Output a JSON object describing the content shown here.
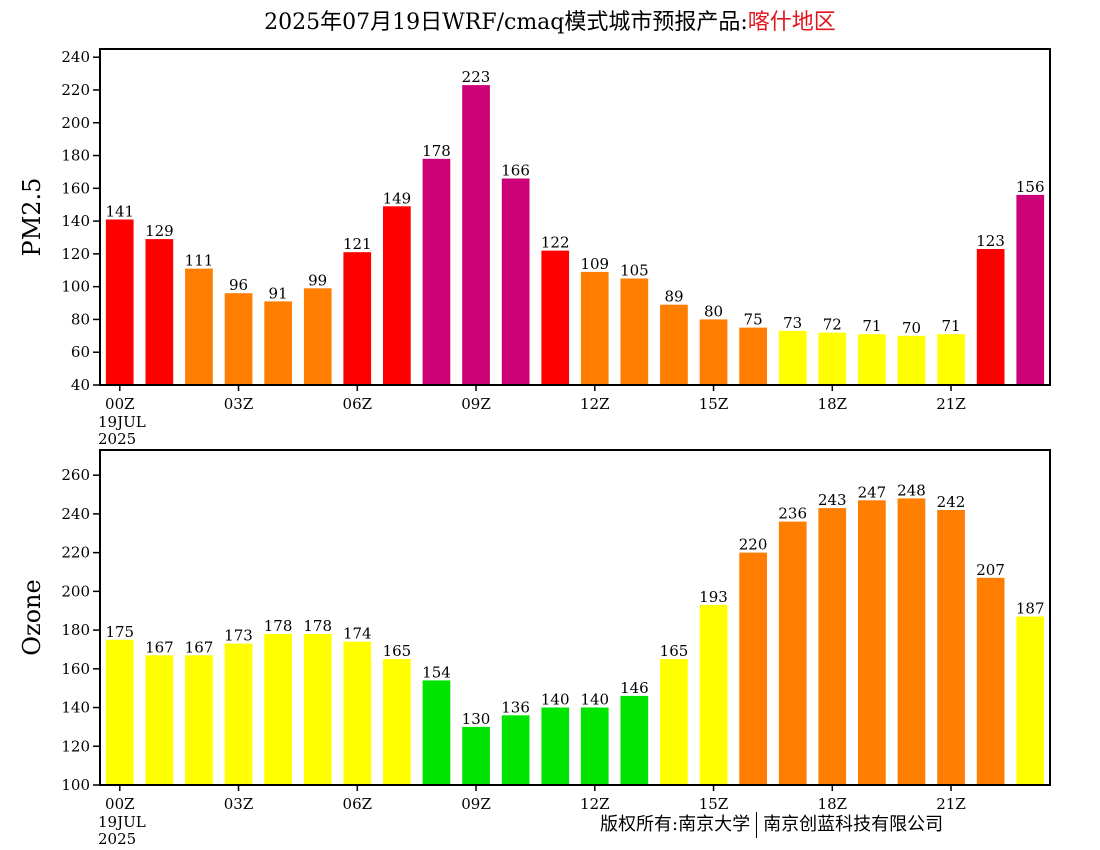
{
  "title": {
    "prefix": "2025年07月19日WRF/cmaq模式城市预报产品:",
    "region": "喀什地区"
  },
  "copyright": {
    "left": "版权所有:南京大学",
    "right": "南京创蓝科技有限公司"
  },
  "colors": {
    "green": "#00e400",
    "yellow": "#ffff00",
    "orange": "#ff7e00",
    "red": "#ff0000",
    "purple": "#cc0077"
  },
  "chart_data": [
    {
      "type": "bar",
      "ylabel": "PM2.5",
      "ylim": [
        40,
        245
      ],
      "yticks": [
        40,
        60,
        80,
        100,
        120,
        140,
        160,
        180,
        200,
        220,
        240
      ],
      "xtick_labels": [
        "00Z",
        "03Z",
        "06Z",
        "09Z",
        "12Z",
        "15Z",
        "18Z",
        "21Z"
      ],
      "xtick_hours": [
        0,
        3,
        6,
        9,
        12,
        15,
        18,
        21
      ],
      "date_label": [
        "19JUL",
        "2025"
      ],
      "hours": [
        0,
        1,
        2,
        3,
        4,
        5,
        6,
        7,
        8,
        9,
        10,
        11,
        12,
        13,
        14,
        15,
        16,
        17,
        18,
        19,
        20,
        21,
        22,
        23
      ],
      "values": [
        141,
        129,
        111,
        96,
        91,
        99,
        121,
        149,
        178,
        223,
        166,
        122,
        109,
        105,
        89,
        80,
        75,
        73,
        72,
        71,
        70,
        71,
        123,
        156
      ],
      "bar_colors": [
        "red",
        "red",
        "orange",
        "orange",
        "orange",
        "orange",
        "red",
        "red",
        "purple",
        "purple",
        "purple",
        "red",
        "orange",
        "orange",
        "orange",
        "orange",
        "orange",
        "yellow",
        "yellow",
        "yellow",
        "yellow",
        "yellow",
        "red",
        "purple"
      ]
    },
    {
      "type": "bar",
      "ylabel": "Ozone",
      "ylim": [
        100,
        273
      ],
      "yticks": [
        100,
        120,
        140,
        160,
        180,
        200,
        220,
        240,
        260
      ],
      "xtick_labels": [
        "00Z",
        "03Z",
        "06Z",
        "09Z",
        "12Z",
        "15Z",
        "18Z",
        "21Z"
      ],
      "xtick_hours": [
        0,
        3,
        6,
        9,
        12,
        15,
        18,
        21
      ],
      "date_label": [
        "19JUL",
        "2025"
      ],
      "hours": [
        0,
        1,
        2,
        3,
        4,
        5,
        6,
        7,
        8,
        9,
        10,
        11,
        12,
        13,
        14,
        15,
        16,
        17,
        18,
        19,
        20,
        21,
        22,
        23
      ],
      "values": [
        175,
        167,
        167,
        173,
        178,
        178,
        174,
        165,
        154,
        130,
        136,
        140,
        140,
        146,
        165,
        193,
        220,
        236,
        243,
        247,
        248,
        242,
        207,
        187
      ],
      "bar_colors": [
        "yellow",
        "yellow",
        "yellow",
        "yellow",
        "yellow",
        "yellow",
        "yellow",
        "yellow",
        "green",
        "green",
        "green",
        "green",
        "green",
        "green",
        "yellow",
        "yellow",
        "orange",
        "orange",
        "orange",
        "orange",
        "orange",
        "orange",
        "orange",
        "yellow"
      ]
    }
  ]
}
